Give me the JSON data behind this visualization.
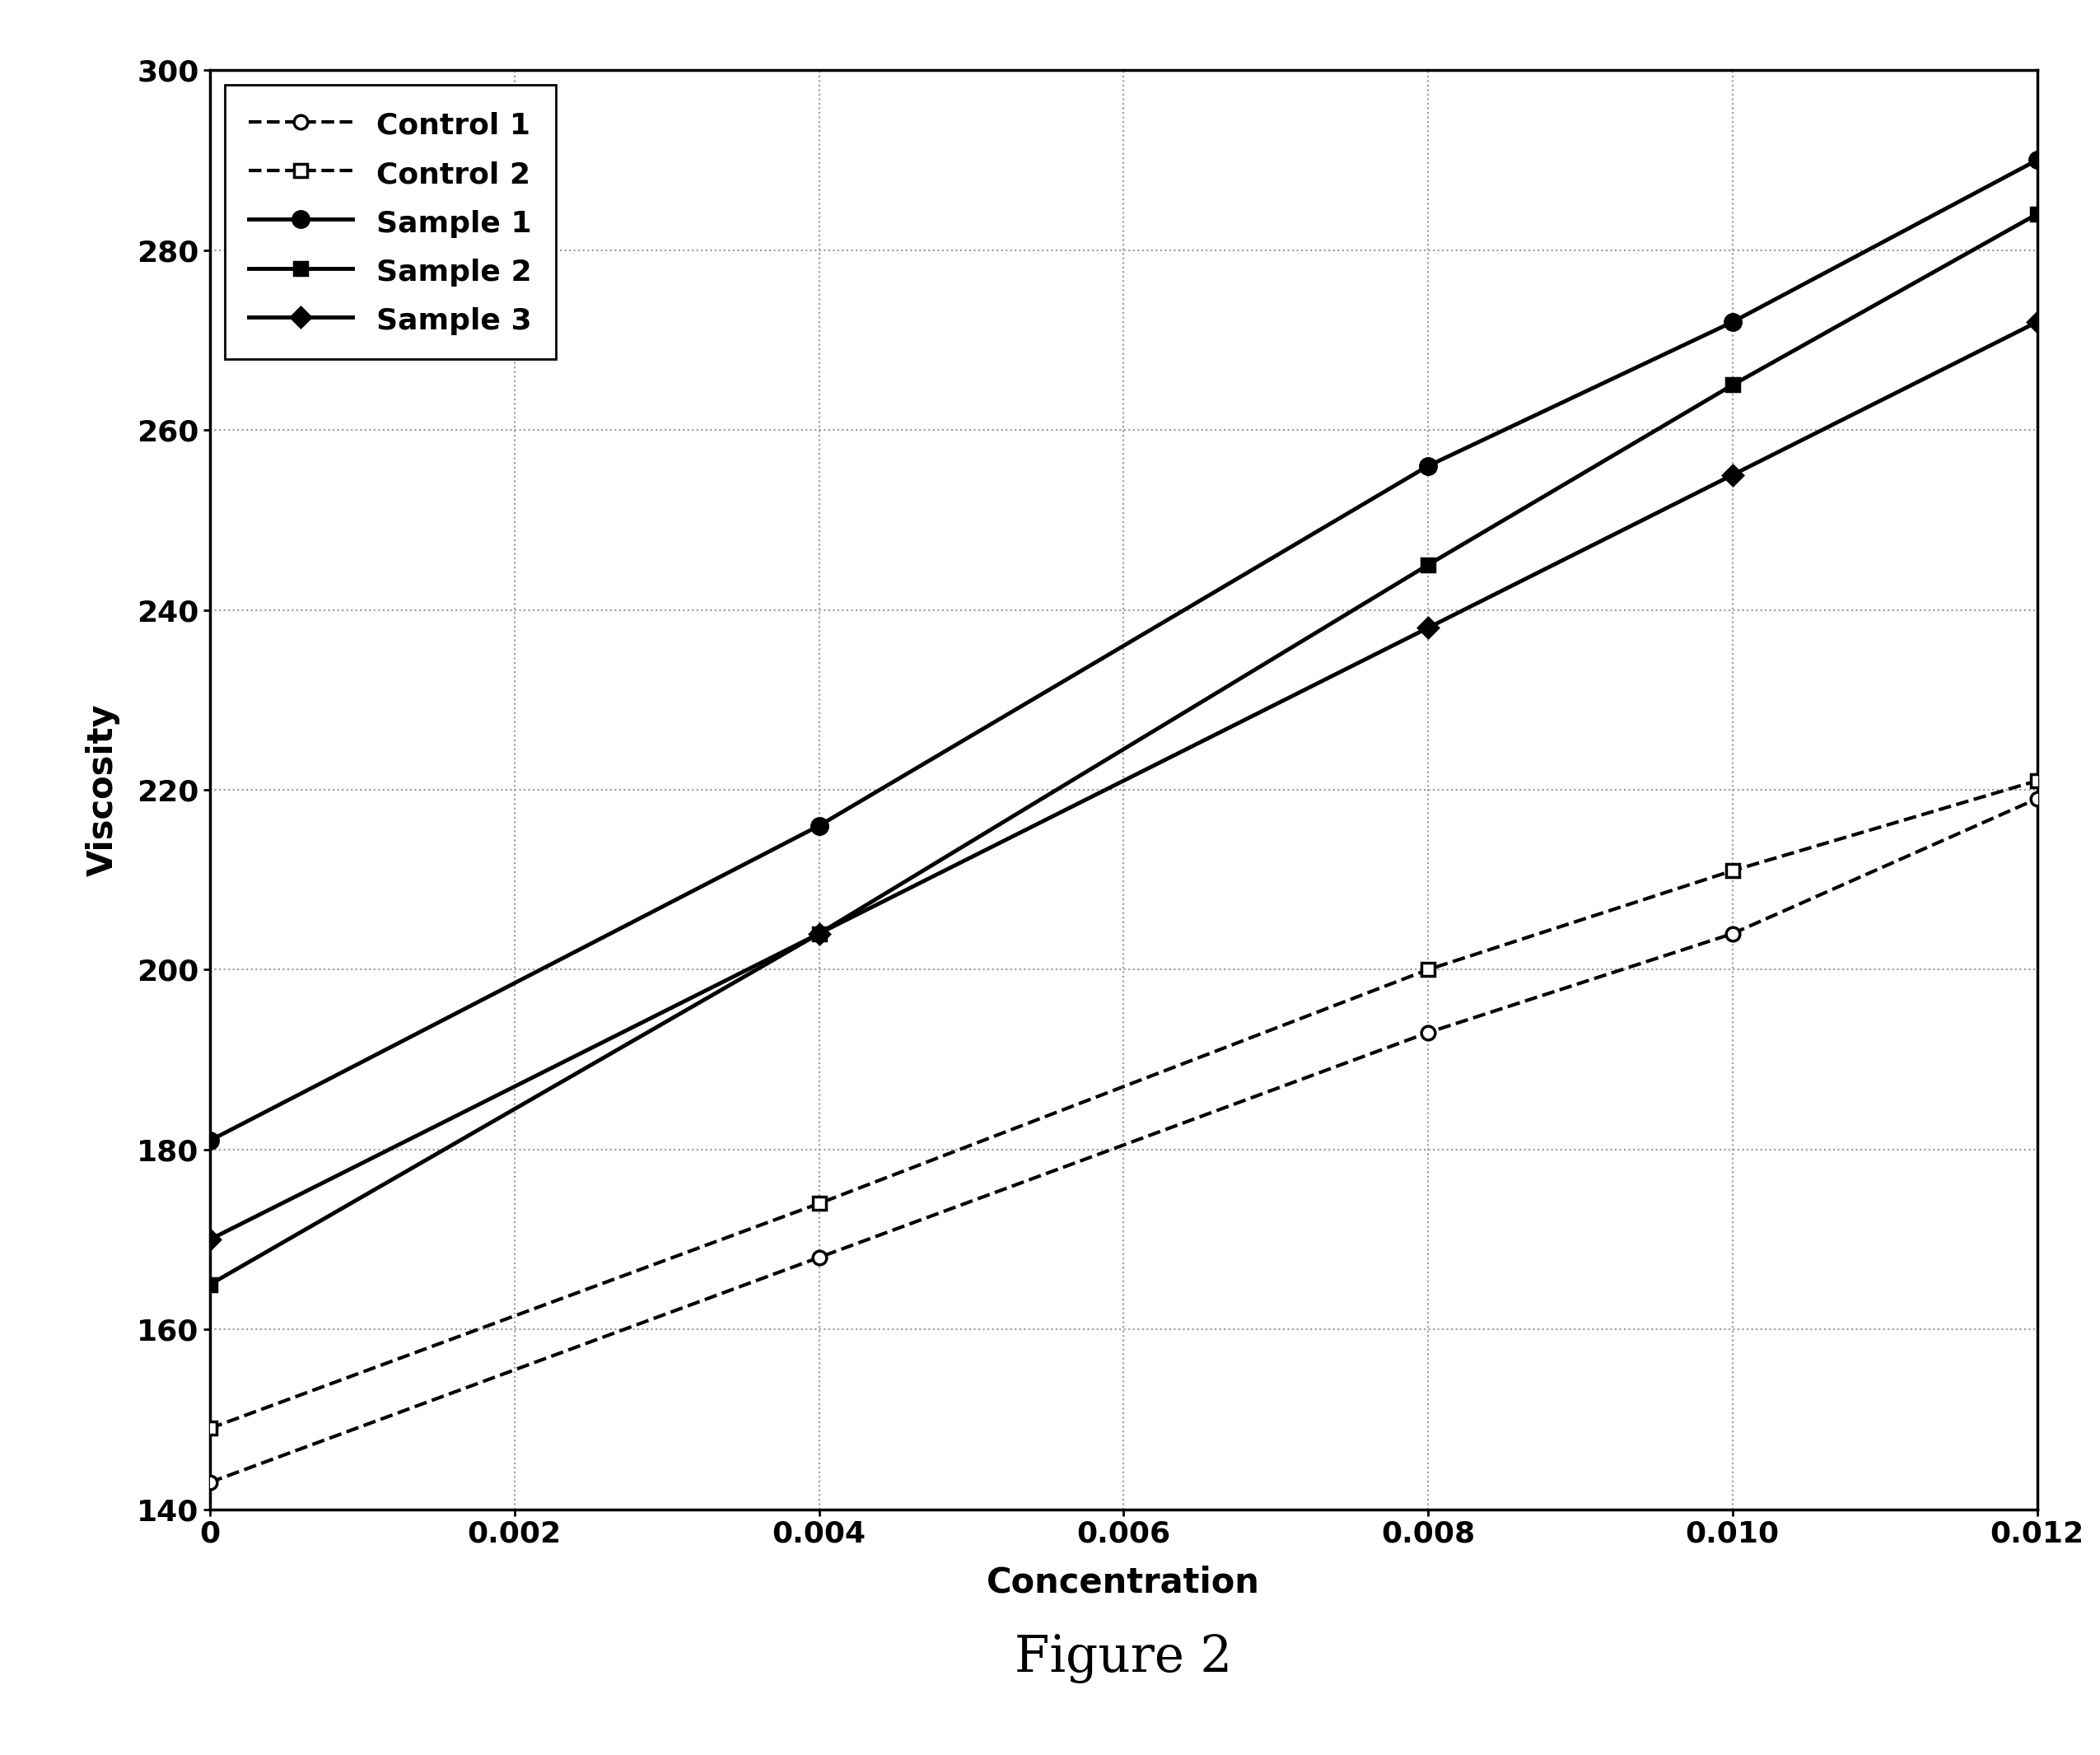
{
  "series": [
    {
      "label": "Control 1",
      "x": [
        0,
        0.004,
        0.008,
        0.01,
        0.012
      ],
      "y": [
        143,
        168,
        193,
        204,
        219
      ],
      "marker": "o",
      "marker_fill": "white",
      "linestyle": "--",
      "linewidth": 3.0,
      "color": "#000000",
      "markersize": 12,
      "markeredgewidth": 2.5
    },
    {
      "label": "Control 2",
      "x": [
        0,
        0.004,
        0.008,
        0.01,
        0.012
      ],
      "y": [
        149,
        174,
        200,
        211,
        221
      ],
      "marker": "s",
      "marker_fill": "white",
      "linestyle": "--",
      "linewidth": 3.0,
      "color": "#000000",
      "markersize": 12,
      "markeredgewidth": 2.5
    },
    {
      "label": "Sample 1",
      "x": [
        0,
        0.004,
        0.008,
        0.01,
        0.012
      ],
      "y": [
        181,
        216,
        256,
        272,
        290
      ],
      "marker": "o",
      "marker_fill": "black",
      "linestyle": "-",
      "linewidth": 3.5,
      "color": "#000000",
      "markersize": 14,
      "markeredgewidth": 2.5
    },
    {
      "label": "Sample 2",
      "x": [
        0,
        0.004,
        0.008,
        0.01,
        0.012
      ],
      "y": [
        165,
        204,
        245,
        265,
        284
      ],
      "marker": "s",
      "marker_fill": "black",
      "linestyle": "-",
      "linewidth": 3.5,
      "color": "#000000",
      "markersize": 12,
      "markeredgewidth": 2.5
    },
    {
      "label": "Sample 3",
      "x": [
        0,
        0.004,
        0.008,
        0.01,
        0.012
      ],
      "y": [
        170,
        204,
        238,
        255,
        272
      ],
      "marker": "D",
      "marker_fill": "black",
      "linestyle": "-",
      "linewidth": 3.5,
      "color": "#000000",
      "markersize": 12,
      "markeredgewidth": 2.5
    }
  ],
  "xlabel": "Concentration",
  "ylabel": "Viscosity",
  "figure_label": "Figure 2",
  "xlim": [
    0,
    0.012
  ],
  "ylim": [
    140,
    300
  ],
  "xticks": [
    0,
    0.002,
    0.004,
    0.006,
    0.008,
    0.01,
    0.012
  ],
  "yticks": [
    140,
    160,
    180,
    200,
    220,
    240,
    260,
    280,
    300
  ],
  "background_color": "#ffffff",
  "grid_color": "#999999",
  "legend_fontsize": 26,
  "axis_label_fontsize": 30,
  "tick_fontsize": 26,
  "figure_label_fontsize": 44
}
